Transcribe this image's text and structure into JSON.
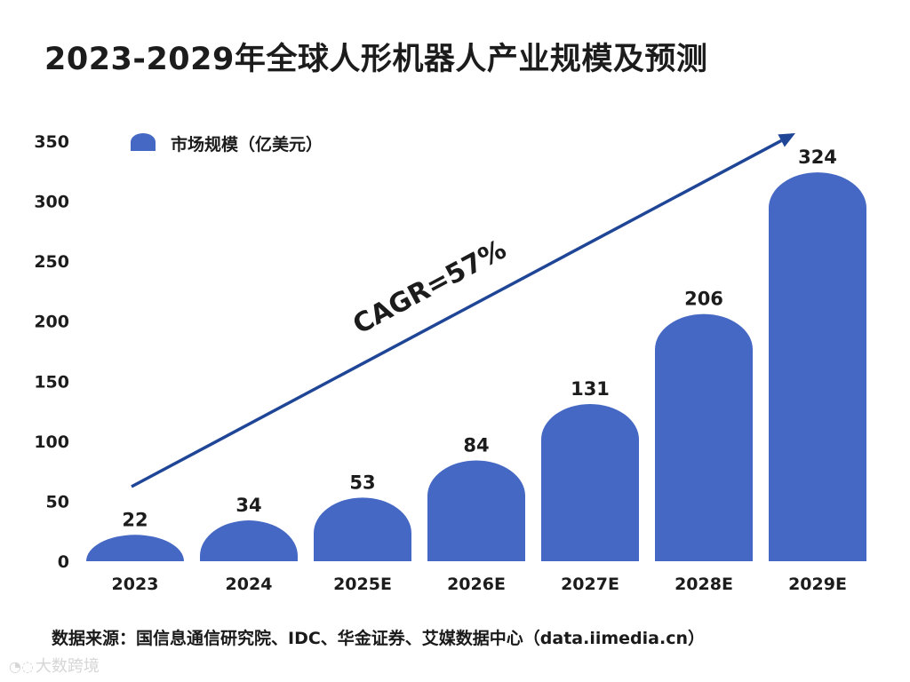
{
  "chart_data": {
    "type": "bar",
    "title": "2023-2029年全球人形机器人产业规模及预测",
    "categories": [
      "2023",
      "2024",
      "2025E",
      "2026E",
      "2027E",
      "2028E",
      "2029E"
    ],
    "values": [
      22,
      34,
      53,
      84,
      131,
      206,
      324
    ],
    "series_name": "市场规模（亿美元）",
    "ylim": [
      0,
      350
    ],
    "yticks": [
      0,
      50,
      100,
      150,
      200,
      250,
      300,
      350
    ],
    "xlabel": "",
    "ylabel": "",
    "grid": false,
    "legend_position": "top-left",
    "annotation": "CAGR=57%",
    "bar_color": "#4568c4",
    "arrow_color": "#1f4696"
  },
  "source": "数据来源：国信息通信研究院、IDC、华金证券、艾媒数据中心（data.iimedia.cn）",
  "watermark": "大数跨境"
}
